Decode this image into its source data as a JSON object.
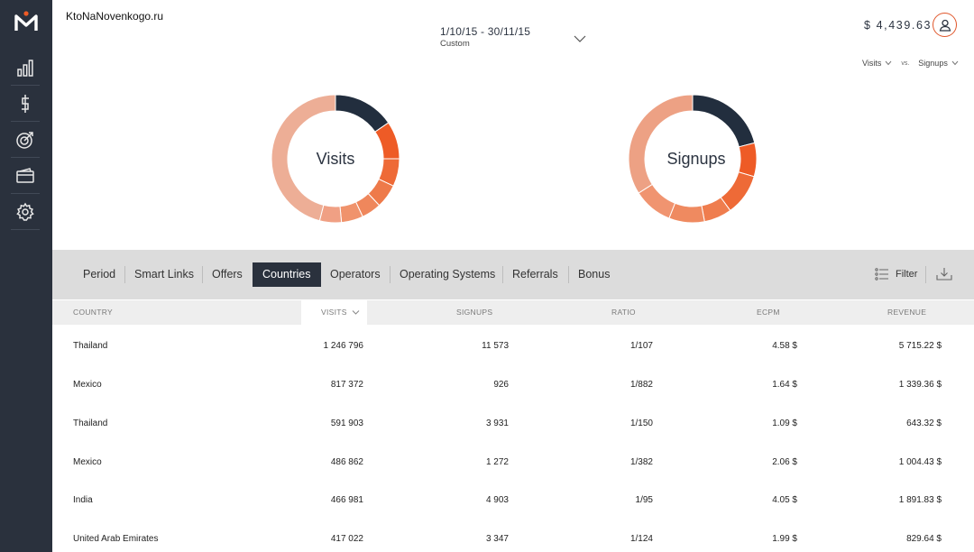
{
  "header": {
    "site_name": "KtoNaNovenkogo.ru",
    "date_range": "1/10/15 - 30/11/15",
    "date_preset": "Custom",
    "balance": "$ 4,439.63",
    "compare": {
      "left": "Visits",
      "vs": "vs.",
      "right": "Signups"
    }
  },
  "sidebar": {
    "items": [
      {
        "icon": "bar-chart-icon"
      },
      {
        "icon": "dollar-icon"
      },
      {
        "icon": "target-icon"
      },
      {
        "icon": "wallet-icon"
      },
      {
        "icon": "gear-icon"
      }
    ]
  },
  "charts": {
    "visits_label": "Visits",
    "signups_label": "Signups"
  },
  "chart_data": [
    {
      "type": "pie",
      "title": "Visits",
      "values": [
        15.5,
        9.5,
        7.0,
        6.0,
        5.0,
        5.5,
        5.5,
        46.0
      ],
      "colors": [
        "#222e3e",
        "#ee5b26",
        "#ee6a37",
        "#ee7a4a",
        "#ef875c",
        "#f0936c",
        "#f0a084",
        "#edae96"
      ]
    },
    {
      "type": "pie",
      "title": "Signups",
      "values": [
        21.0,
        8.5,
        10.5,
        7.0,
        9.0,
        10.0,
        34.0
      ],
      "colors": [
        "#222e3e",
        "#ee5b26",
        "#ee6a37",
        "#ef7d4e",
        "#ef8a60",
        "#f09470",
        "#eda184"
      ]
    }
  ],
  "tabs": [
    {
      "label": "Period"
    },
    {
      "label": "Smart Links"
    },
    {
      "label": "Offers"
    },
    {
      "label": "Countries",
      "active": true
    },
    {
      "label": "Operators"
    },
    {
      "label": "Operating Systems"
    },
    {
      "label": "Referrals"
    },
    {
      "label": "Bonus"
    }
  ],
  "toolbar": {
    "filter_label": "Filter"
  },
  "table": {
    "columns": [
      "COUNTRY",
      "VISITS",
      "SIGNUPS",
      "RATIO",
      "ECPM",
      "REVENUE"
    ],
    "rows": [
      [
        "Thailand",
        "1 246 796",
        "11 573",
        "1/107",
        "4.58 $",
        "5 715.22 $"
      ],
      [
        "Mexico",
        "817 372",
        "926",
        "1/882",
        "1.64 $",
        "1 339.36 $"
      ],
      [
        "Thailand",
        "591 903",
        "3 931",
        "1/150",
        "1.09 $",
        "643.32 $"
      ],
      [
        "Mexico",
        "486 862",
        "1 272",
        "1/382",
        "2.06 $",
        "1 004.43 $"
      ],
      [
        "India",
        "466 981",
        "4 903",
        "1/95",
        "4.05 $",
        "1 891.83 $"
      ],
      [
        "United Arab Emirates",
        "417 022",
        "3 347",
        "1/124",
        "1.99 $",
        "829.64 $"
      ]
    ]
  }
}
